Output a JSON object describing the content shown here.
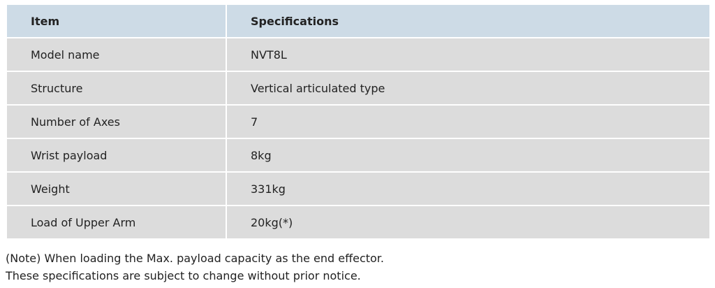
{
  "table": {
    "header": [
      "Item",
      "Specifications"
    ],
    "rows": [
      [
        "Model name",
        "NVT8L"
      ],
      [
        "Structure",
        "Vertical articulated type"
      ],
      [
        "Number of Axes",
        "7"
      ],
      [
        "Wrist payload",
        "8kg"
      ],
      [
        "Weight",
        "331kg"
      ],
      [
        "Load of Upper Arm",
        "20kg(*)"
      ]
    ]
  },
  "notes": [
    "(Note) When loading the Max. payload capacity as the end effector.",
    "These specifications are subject to change without prior notice."
  ]
}
